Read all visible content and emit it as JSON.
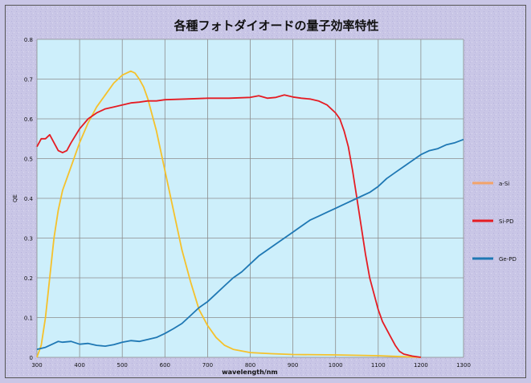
{
  "chart_data": {
    "type": "line",
    "title": "各種フォトダイオードの量子効率特性",
    "xlabel": "wavelength/nm",
    "ylabel": "QE",
    "xlim": [
      300,
      1300
    ],
    "ylim": [
      0,
      0.8
    ],
    "x_ticks": [
      300,
      400,
      500,
      600,
      700,
      800,
      900,
      1000,
      1100,
      1200,
      1300
    ],
    "y_ticks": [
      0,
      0.1,
      0.2,
      0.3,
      0.4,
      0.5,
      0.6,
      0.7,
      0.8
    ],
    "grid": true,
    "legend_position": "right",
    "colors": {
      "background": "#c9c6e6",
      "plot_area": "#cdeffb",
      "grid": "#8c8c8c"
    },
    "series": [
      {
        "name": "a-Si",
        "color": "#f5c12b",
        "legend_color": "#f2a36a",
        "points": [
          [
            300,
            0.0
          ],
          [
            310,
            0.03
          ],
          [
            320,
            0.1
          ],
          [
            330,
            0.2
          ],
          [
            340,
            0.3
          ],
          [
            350,
            0.37
          ],
          [
            360,
            0.42
          ],
          [
            380,
            0.48
          ],
          [
            400,
            0.54
          ],
          [
            420,
            0.59
          ],
          [
            440,
            0.63
          ],
          [
            460,
            0.66
          ],
          [
            480,
            0.69
          ],
          [
            500,
            0.71
          ],
          [
            510,
            0.715
          ],
          [
            520,
            0.72
          ],
          [
            530,
            0.715
          ],
          [
            540,
            0.7
          ],
          [
            550,
            0.68
          ],
          [
            560,
            0.65
          ],
          [
            570,
            0.61
          ],
          [
            580,
            0.57
          ],
          [
            600,
            0.47
          ],
          [
            620,
            0.37
          ],
          [
            640,
            0.27
          ],
          [
            660,
            0.19
          ],
          [
            680,
            0.12
          ],
          [
            700,
            0.08
          ],
          [
            720,
            0.05
          ],
          [
            740,
            0.03
          ],
          [
            760,
            0.02
          ],
          [
            800,
            0.012
          ],
          [
            850,
            0.009
          ],
          [
            900,
            0.007
          ],
          [
            1000,
            0.006
          ],
          [
            1050,
            0.005
          ],
          [
            1100,
            0.004
          ],
          [
            1200,
            0.0
          ]
        ]
      },
      {
        "name": "Si-PD",
        "color": "#e51c23",
        "legend_color": "#e51c23",
        "points": [
          [
            300,
            0.53
          ],
          [
            310,
            0.55
          ],
          [
            320,
            0.55
          ],
          [
            330,
            0.56
          ],
          [
            340,
            0.54
          ],
          [
            350,
            0.52
          ],
          [
            360,
            0.515
          ],
          [
            370,
            0.52
          ],
          [
            380,
            0.54
          ],
          [
            400,
            0.575
          ],
          [
            420,
            0.6
          ],
          [
            440,
            0.615
          ],
          [
            460,
            0.625
          ],
          [
            480,
            0.63
          ],
          [
            500,
            0.635
          ],
          [
            520,
            0.64
          ],
          [
            540,
            0.642
          ],
          [
            560,
            0.645
          ],
          [
            580,
            0.645
          ],
          [
            600,
            0.648
          ],
          [
            650,
            0.65
          ],
          [
            700,
            0.652
          ],
          [
            750,
            0.652
          ],
          [
            800,
            0.654
          ],
          [
            820,
            0.658
          ],
          [
            840,
            0.652
          ],
          [
            860,
            0.654
          ],
          [
            880,
            0.66
          ],
          [
            900,
            0.655
          ],
          [
            920,
            0.652
          ],
          [
            940,
            0.65
          ],
          [
            960,
            0.645
          ],
          [
            980,
            0.635
          ],
          [
            1000,
            0.615
          ],
          [
            1010,
            0.6
          ],
          [
            1020,
            0.57
          ],
          [
            1030,
            0.53
          ],
          [
            1040,
            0.47
          ],
          [
            1050,
            0.4
          ],
          [
            1060,
            0.33
          ],
          [
            1070,
            0.26
          ],
          [
            1080,
            0.2
          ],
          [
            1090,
            0.16
          ],
          [
            1100,
            0.12
          ],
          [
            1110,
            0.09
          ],
          [
            1120,
            0.07
          ],
          [
            1130,
            0.05
          ],
          [
            1140,
            0.03
          ],
          [
            1150,
            0.015
          ],
          [
            1160,
            0.008
          ],
          [
            1180,
            0.003
          ],
          [
            1200,
            0.0
          ]
        ]
      },
      {
        "name": "Ge-PD",
        "color": "#1f78b4",
        "legend_color": "#1f78b4",
        "points": [
          [
            300,
            0.02
          ],
          [
            320,
            0.025
          ],
          [
            340,
            0.035
          ],
          [
            350,
            0.04
          ],
          [
            360,
            0.038
          ],
          [
            380,
            0.04
          ],
          [
            400,
            0.033
          ],
          [
            420,
            0.035
          ],
          [
            440,
            0.03
          ],
          [
            460,
            0.028
          ],
          [
            480,
            0.032
          ],
          [
            500,
            0.038
          ],
          [
            520,
            0.042
          ],
          [
            540,
            0.04
          ],
          [
            560,
            0.045
          ],
          [
            580,
            0.05
          ],
          [
            600,
            0.06
          ],
          [
            620,
            0.072
          ],
          [
            640,
            0.085
          ],
          [
            660,
            0.105
          ],
          [
            680,
            0.125
          ],
          [
            700,
            0.14
          ],
          [
            720,
            0.16
          ],
          [
            740,
            0.18
          ],
          [
            760,
            0.2
          ],
          [
            780,
            0.215
          ],
          [
            800,
            0.235
          ],
          [
            820,
            0.255
          ],
          [
            840,
            0.27
          ],
          [
            860,
            0.285
          ],
          [
            880,
            0.3
          ],
          [
            900,
            0.315
          ],
          [
            920,
            0.33
          ],
          [
            940,
            0.345
          ],
          [
            960,
            0.355
          ],
          [
            980,
            0.365
          ],
          [
            1000,
            0.375
          ],
          [
            1020,
            0.385
          ],
          [
            1040,
            0.395
          ],
          [
            1060,
            0.405
          ],
          [
            1080,
            0.415
          ],
          [
            1100,
            0.43
          ],
          [
            1120,
            0.45
          ],
          [
            1140,
            0.465
          ],
          [
            1160,
            0.48
          ],
          [
            1180,
            0.495
          ],
          [
            1200,
            0.51
          ],
          [
            1220,
            0.52
          ],
          [
            1240,
            0.525
          ],
          [
            1260,
            0.535
          ],
          [
            1280,
            0.54
          ],
          [
            1300,
            0.548
          ]
        ]
      }
    ]
  }
}
